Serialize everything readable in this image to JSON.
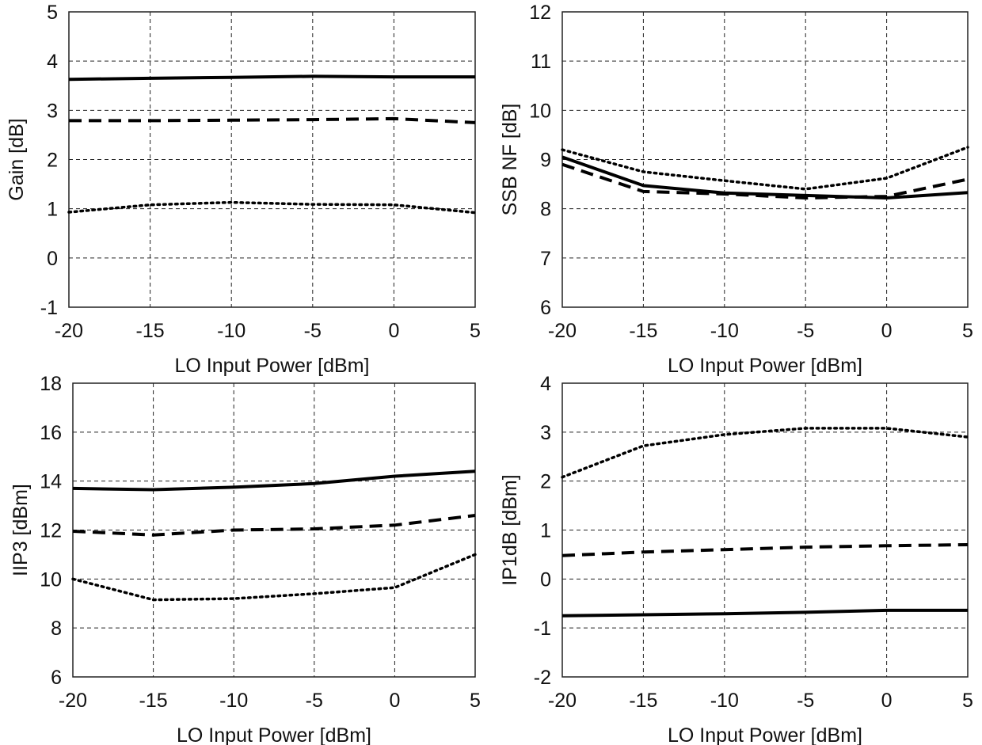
{
  "chart_data": [
    {
      "type": "line",
      "xlabel": "LO Input Power [dBm]",
      "ylabel": "Gain [dB]",
      "x": [
        -20,
        -15,
        -10,
        -5,
        0,
        5
      ],
      "xlim": [
        -20,
        5
      ],
      "ylim": [
        -1,
        5
      ],
      "xticks": [
        "-20",
        "-15",
        "-10",
        "-5",
        "0",
        "5"
      ],
      "yticks": [
        "-1",
        "0",
        "1",
        "2",
        "3",
        "4",
        "5"
      ],
      "grid": true,
      "series": [
        {
          "style": "solid",
          "values": [
            3.63,
            3.65,
            3.67,
            3.69,
            3.68,
            3.68
          ]
        },
        {
          "style": "dashed",
          "values": [
            2.79,
            2.79,
            2.8,
            2.81,
            2.83,
            2.75
          ]
        },
        {
          "style": "dotted",
          "values": [
            0.93,
            1.08,
            1.13,
            1.09,
            1.08,
            0.92
          ]
        }
      ]
    },
    {
      "type": "line",
      "xlabel": "LO Input Power [dBm]",
      "ylabel": "SSB NF [dB]",
      "x": [
        -20,
        -15,
        -10,
        -5,
        0,
        5
      ],
      "xlim": [
        -20,
        5
      ],
      "ylim": [
        6,
        12
      ],
      "xticks": [
        "-20",
        "-15",
        "-10",
        "-5",
        "0",
        "5"
      ],
      "yticks": [
        "6",
        "7",
        "8",
        "9",
        "10",
        "11",
        "12"
      ],
      "grid": true,
      "series": [
        {
          "style": "solid",
          "values": [
            9.05,
            8.47,
            8.32,
            8.27,
            8.22,
            8.33
          ]
        },
        {
          "style": "dashed",
          "values": [
            8.9,
            8.35,
            8.3,
            8.22,
            8.25,
            8.6
          ]
        },
        {
          "style": "dotted",
          "values": [
            9.2,
            8.75,
            8.57,
            8.4,
            8.62,
            9.25
          ]
        }
      ]
    },
    {
      "type": "line",
      "xlabel": "LO Input Power [dBm]",
      "ylabel": "IIP3 [dBm]",
      "x": [
        -20,
        -15,
        -10,
        -5,
        0,
        5
      ],
      "xlim": [
        -20,
        5
      ],
      "ylim": [
        6,
        18
      ],
      "xticks": [
        "-20",
        "-15",
        "-10",
        "-5",
        "0",
        "5"
      ],
      "yticks": [
        "6",
        "8",
        "10",
        "12",
        "14",
        "16",
        "18"
      ],
      "grid": true,
      "series": [
        {
          "style": "solid",
          "values": [
            13.7,
            13.65,
            13.75,
            13.9,
            14.2,
            14.4
          ]
        },
        {
          "style": "dashed",
          "values": [
            11.95,
            11.8,
            12.0,
            12.05,
            12.2,
            12.6
          ]
        },
        {
          "style": "dotted",
          "values": [
            10.0,
            9.15,
            9.2,
            9.4,
            9.65,
            11.0
          ]
        }
      ]
    },
    {
      "type": "line",
      "xlabel": "LO Input Power [dBm]",
      "ylabel": "IP1dB [dBm]",
      "x": [
        -20,
        -15,
        -10,
        -5,
        0,
        5
      ],
      "xlim": [
        -20,
        5
      ],
      "ylim": [
        -2,
        4
      ],
      "xticks": [
        "-20",
        "-15",
        "-10",
        "-5",
        "0",
        "5"
      ],
      "yticks": [
        "-2",
        "-1",
        "0",
        "1",
        "2",
        "3",
        "4"
      ],
      "grid": true,
      "series": [
        {
          "style": "solid",
          "values": [
            -0.75,
            -0.73,
            -0.71,
            -0.68,
            -0.64,
            -0.64
          ]
        },
        {
          "style": "dashed",
          "values": [
            0.48,
            0.55,
            0.6,
            0.65,
            0.68,
            0.7
          ]
        },
        {
          "style": "dotted",
          "values": [
            2.08,
            2.72,
            2.95,
            3.08,
            3.08,
            2.9
          ]
        }
      ]
    }
  ]
}
